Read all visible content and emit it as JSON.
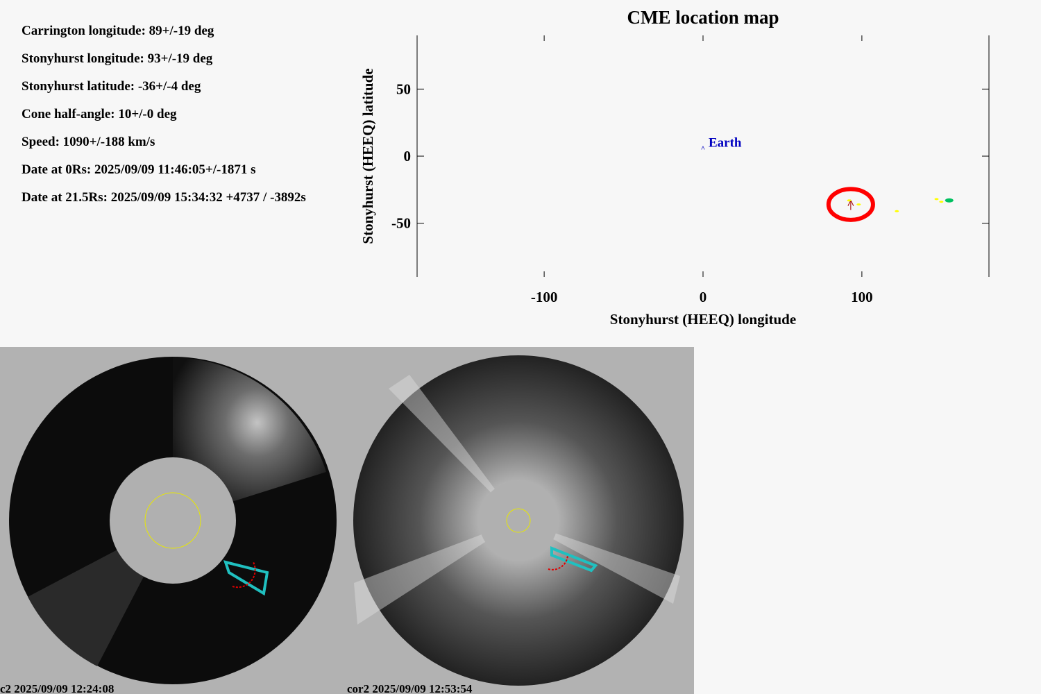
{
  "parameters": [
    "Carrington longitude: 89+/-19 deg",
    "Stonyhurst longitude: 93+/-19 deg",
    "Stonyhurst latitude: -36+/-4 deg",
    "Cone half-angle: 10+/-0 deg",
    "Speed: 1090+/-188 km/s",
    "Date at 0Rs: 2025/09/09 11:46:05+/-1871 s",
    "Date at 21.5Rs: 2025/09/09 15:34:32 +4737 / -3892s"
  ],
  "chart_data": {
    "type": "scatter",
    "title": "CME location map",
    "x_label": "Stonyhurst (HEEQ) longitude",
    "y_label": "Stonyhurst (HEEQ) latitude",
    "xlim": [
      -180,
      180
    ],
    "ylim": [
      -90,
      90
    ],
    "xticks": [
      -100,
      0,
      100
    ],
    "yticks": [
      -50,
      0,
      50
    ],
    "earth": {
      "x": 0,
      "y": 7,
      "label": "Earth",
      "color": "#0000c0"
    },
    "cone": {
      "x": 93,
      "y": -36,
      "rx": 14,
      "ry": 11.5,
      "color": "#ff0000"
    },
    "detections": {
      "x": [
        92,
        98,
        122,
        147,
        150
      ],
      "y": [
        -33,
        -36,
        -41,
        -32,
        -34
      ],
      "color": "#ffff00"
    },
    "fit": {
      "x": [
        155
      ],
      "y": [
        -33
      ],
      "color": "#00c060"
    }
  },
  "images": [
    {
      "caption": "c2 2025/09/09 12:24:08"
    },
    {
      "caption": "cor2 2025/09/09 12:53:54"
    }
  ]
}
